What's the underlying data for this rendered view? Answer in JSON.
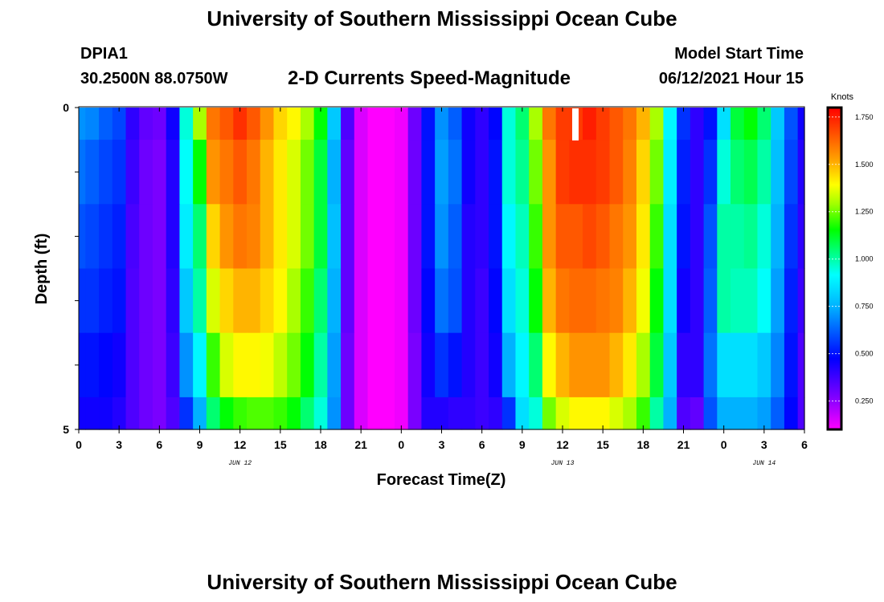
{
  "header": {
    "title_top": "University of Southern Mississippi Ocean Cube",
    "title_bottom": "University of Southern Mississippi Ocean Cube",
    "station": "DPIA1",
    "coords": "30.2500N  88.0750W",
    "model_start_label": "Model Start Time",
    "model_start_value": "06/12/2021 Hour 15",
    "chart_title": "2-D Currents Speed-Magnitude"
  },
  "chart_data": {
    "type": "heatmap",
    "title": "2-D Currents Speed-Magnitude",
    "xlabel": "Forecast Time(Z)",
    "ylabel": "Depth (ft)",
    "ylim": [
      0,
      5
    ],
    "y_tick_labels": [
      "0",
      "5"
    ],
    "x_tick_labels": [
      "0",
      "3",
      "6",
      "9",
      "12",
      "15",
      "18",
      "21",
      "0",
      "3",
      "6",
      "9",
      "12",
      "15",
      "18",
      "21",
      "0",
      "3",
      "6"
    ],
    "date_labels": [
      "JUN 12",
      "JUN 13",
      "JUN 14"
    ],
    "colorbar": {
      "title": "Knots",
      "range": [
        0.1,
        1.8
      ],
      "tick_labels": [
        "1.750",
        "1.500",
        "1.250",
        "1.000",
        "0.750",
        "0.500",
        "0.250"
      ],
      "tick_values": [
        1.75,
        1.5,
        1.25,
        1.0,
        0.75,
        0.5,
        0.25
      ]
    },
    "x_hours": [
      0,
      1,
      2,
      3,
      4,
      5,
      6,
      7,
      8,
      9,
      10,
      11,
      12,
      13,
      14,
      15,
      16,
      17,
      18,
      19,
      20,
      21,
      22,
      23,
      24,
      25,
      26,
      27,
      28,
      29,
      30,
      31,
      32,
      33,
      34,
      35,
      36,
      37,
      38,
      39,
      40,
      41,
      42,
      43,
      44,
      45,
      46,
      47,
      48,
      49,
      50,
      51,
      52,
      53,
      54
    ],
    "depth_rows": [
      {
        "depth_range": [
          0,
          0.5
        ],
        "values": [
          0.7,
          0.68,
          0.62,
          0.58,
          0.4,
          0.32,
          0.3,
          0.45,
          0.95,
          1.3,
          1.6,
          1.65,
          1.72,
          1.65,
          1.55,
          1.45,
          1.4,
          1.3,
          1.15,
          0.8,
          0.35,
          0.15,
          0.1,
          0.1,
          0.12,
          0.3,
          0.5,
          0.7,
          0.62,
          0.45,
          0.4,
          0.48,
          0.95,
          1.05,
          1.3,
          1.6,
          1.7,
          1.7,
          1.75,
          1.7,
          1.65,
          1.6,
          1.5,
          1.3,
          0.9,
          0.55,
          0.4,
          0.5,
          0.85,
          1.1,
          1.15,
          1.05,
          0.8,
          0.6,
          0.45
        ]
      },
      {
        "depth_range": [
          0.5,
          1.5
        ],
        "values": [
          0.65,
          0.62,
          0.58,
          0.55,
          0.38,
          0.3,
          0.28,
          0.42,
          0.92,
          1.15,
          1.55,
          1.6,
          1.65,
          1.6,
          1.5,
          1.42,
          1.35,
          1.25,
          1.1,
          0.75,
          0.32,
          0.15,
          0.1,
          0.1,
          0.12,
          0.3,
          0.5,
          0.72,
          0.65,
          0.45,
          0.4,
          0.5,
          0.95,
          1.02,
          1.25,
          1.55,
          1.7,
          1.72,
          1.72,
          1.7,
          1.65,
          1.58,
          1.45,
          1.25,
          0.88,
          0.52,
          0.4,
          0.55,
          0.95,
          1.05,
          1.08,
          1.0,
          0.78,
          0.58,
          0.42
        ]
      },
      {
        "depth_range": [
          1.5,
          2.5
        ],
        "values": [
          0.6,
          0.58,
          0.55,
          0.52,
          0.36,
          0.3,
          0.28,
          0.42,
          0.88,
          1.05,
          1.45,
          1.55,
          1.6,
          1.58,
          1.5,
          1.42,
          1.35,
          1.25,
          1.1,
          0.78,
          0.32,
          0.15,
          0.1,
          0.1,
          0.12,
          0.3,
          0.5,
          0.7,
          0.62,
          0.42,
          0.4,
          0.5,
          0.9,
          0.98,
          1.2,
          1.55,
          1.65,
          1.65,
          1.68,
          1.65,
          1.6,
          1.55,
          1.42,
          1.2,
          0.85,
          0.5,
          0.4,
          0.6,
          1.0,
          1.0,
          1.02,
          0.95,
          0.75,
          0.55,
          0.4
        ]
      },
      {
        "depth_range": [
          2.5,
          3.5
        ],
        "values": [
          0.55,
          0.55,
          0.52,
          0.5,
          0.35,
          0.3,
          0.28,
          0.4,
          0.8,
          1.0,
          1.35,
          1.45,
          1.5,
          1.5,
          1.45,
          1.4,
          1.3,
          1.2,
          1.05,
          0.75,
          0.32,
          0.15,
          0.1,
          0.1,
          0.12,
          0.3,
          0.48,
          0.65,
          0.6,
          0.42,
          0.38,
          0.48,
          0.85,
          0.95,
          1.15,
          1.5,
          1.6,
          1.62,
          1.62,
          1.6,
          1.58,
          1.5,
          1.38,
          1.15,
          0.85,
          0.45,
          0.4,
          0.62,
          1.0,
          0.98,
          0.98,
          0.92,
          0.72,
          0.52,
          0.38
        ]
      },
      {
        "depth_range": [
          3.5,
          4.5
        ],
        "values": [
          0.5,
          0.5,
          0.48,
          0.45,
          0.35,
          0.3,
          0.28,
          0.38,
          0.7,
          0.9,
          1.2,
          1.35,
          1.4,
          1.4,
          1.38,
          1.32,
          1.25,
          1.15,
          1.0,
          0.72,
          0.3,
          0.15,
          0.1,
          0.1,
          0.12,
          0.28,
          0.45,
          0.55,
          0.5,
          0.42,
          0.38,
          0.45,
          0.75,
          0.9,
          1.05,
          1.4,
          1.5,
          1.55,
          1.55,
          1.55,
          1.5,
          1.42,
          1.3,
          1.1,
          0.8,
          0.4,
          0.4,
          0.65,
          0.85,
          0.85,
          0.85,
          0.8,
          0.68,
          0.5,
          0.35
        ]
      },
      {
        "depth_range": [
          4.5,
          5.0
        ],
        "values": [
          0.45,
          0.45,
          0.45,
          0.42,
          0.35,
          0.3,
          0.28,
          0.35,
          0.55,
          0.75,
          1.05,
          1.15,
          1.2,
          1.22,
          1.22,
          1.2,
          1.15,
          1.05,
          0.95,
          0.7,
          0.3,
          0.15,
          0.1,
          0.1,
          0.12,
          0.28,
          0.42,
          0.42,
          0.4,
          0.4,
          0.38,
          0.4,
          0.55,
          0.85,
          0.95,
          1.25,
          1.35,
          1.4,
          1.4,
          1.4,
          1.35,
          1.3,
          1.2,
          1.0,
          0.75,
          0.35,
          0.32,
          0.6,
          0.75,
          0.75,
          0.75,
          0.72,
          0.62,
          0.48,
          0.35
        ]
      }
    ]
  }
}
